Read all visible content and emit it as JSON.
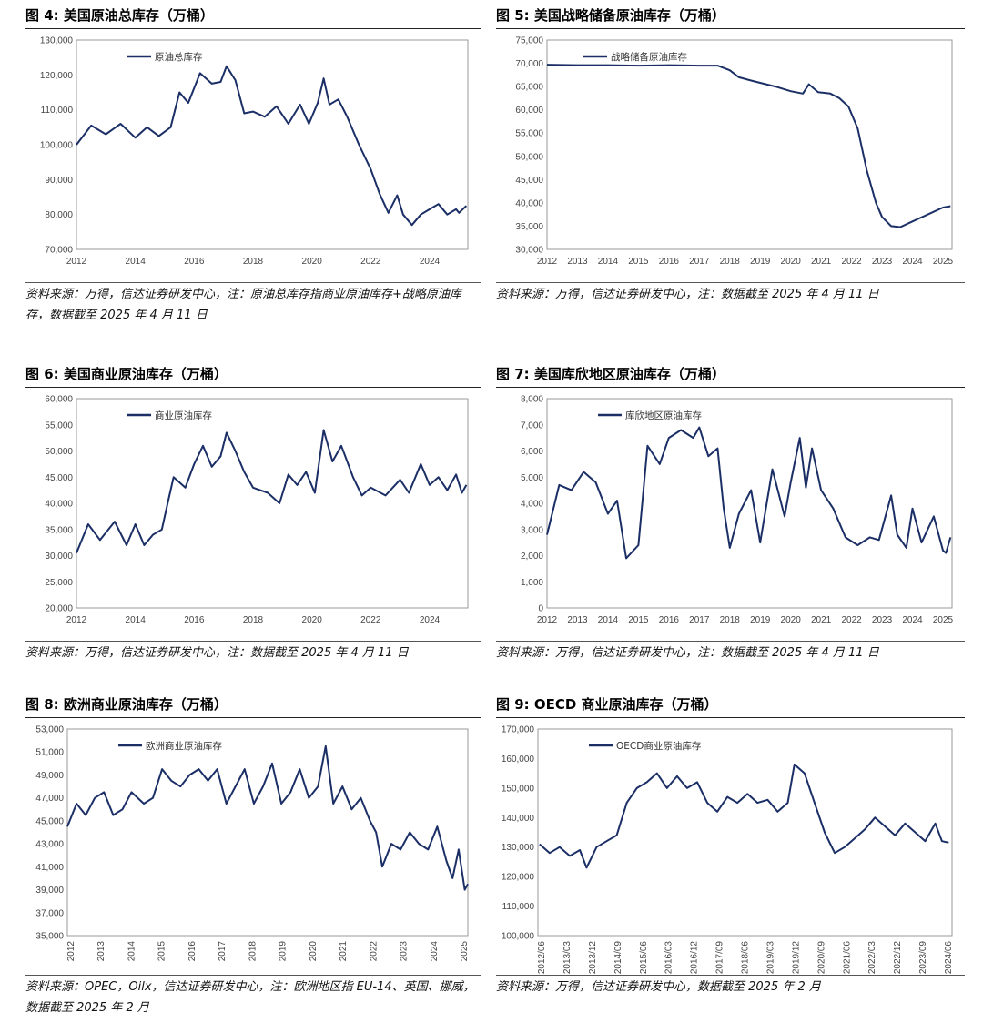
{
  "page": {
    "line_color": "#1b2f66",
    "panels": [
      {
        "title": "图 4:  美国原油总库存（万桶）",
        "source": "资料来源：万得，信达证券研发中心，注：原油总库存指商业原油库存+战略原油库存，数据截至 2025 年 4 月 11 日"
      },
      {
        "title": "图 5:  美国战略储备原油库存（万桶）",
        "source": "资料来源：万得，信达证券研发中心，注：数据截至 2025 年 4 月 11 日"
      },
      {
        "title": "图 6:  美国商业原油库存（万桶）",
        "source": "资料来源：万得，信达证券研发中心，注：数据截至 2025 年 4 月 11 日"
      },
      {
        "title": "图 7:  美国库欣地区原油库存（万桶）",
        "source": "资料来源：万得，信达证券研发中心，注：数据截至 2025 年 4 月 11 日"
      },
      {
        "title": "图 8:  欧洲商业原油库存（万桶）",
        "source": "资料来源：OPEC，Oilx，信达证券研发中心，注：欧洲地区指 EU-14、英国、挪威，数据截至 2025 年 2 月"
      },
      {
        "title": "图 9:  OECD 商业原油库存（万桶）",
        "source": "资料来源：万得，信达证券研发中心，数据截至 2025 年 2 月"
      }
    ]
  },
  "chart_data": [
    {
      "type": "line",
      "title": "图 4:  美国原油总库存（万桶）",
      "series": [
        {
          "name": "原油总库存",
          "x": [
            2012.0,
            2012.5,
            2013.0,
            2013.5,
            2014.0,
            2014.4,
            2014.8,
            2015.2,
            2015.5,
            2015.8,
            2016.2,
            2016.6,
            2016.9,
            2017.1,
            2017.4,
            2017.7,
            2018.0,
            2018.4,
            2018.8,
            2019.2,
            2019.6,
            2019.9,
            2020.2,
            2020.4,
            2020.6,
            2020.9,
            2021.2,
            2021.6,
            2022.0,
            2022.3,
            2022.6,
            2022.9,
            2023.1,
            2023.4,
            2023.7,
            2024.0,
            2024.3,
            2024.6,
            2024.9,
            2025.0,
            2025.25
          ],
          "values": [
            100000,
            105500,
            103000,
            106000,
            102000,
            105000,
            102500,
            105000,
            115000,
            112000,
            120500,
            117500,
            118000,
            122500,
            118500,
            109000,
            109500,
            108000,
            111000,
            106000,
            111500,
            106000,
            112000,
            119000,
            111500,
            113000,
            108000,
            100000,
            93000,
            86000,
            80500,
            85500,
            80000,
            77000,
            80000,
            81500,
            83000,
            80000,
            81500,
            80500,
            82500
          ]
        }
      ],
      "xlim": [
        2012,
        2025.3
      ],
      "ylim": [
        70000,
        130000
      ],
      "x_ticks": [
        "2012",
        "2014",
        "2016",
        "2018",
        "2020",
        "2022",
        "2024"
      ],
      "y_ticks": [
        "70,000",
        "80,000",
        "90,000",
        "100,000",
        "110,000",
        "120,000",
        "130,000"
      ]
    },
    {
      "type": "line",
      "title": "图 5:  美国战略储备原油库存（万桶）",
      "series": [
        {
          "name": "战略储备原油库存",
          "x": [
            2012.0,
            2013.0,
            2014.0,
            2015.0,
            2016.0,
            2017.0,
            2017.6,
            2018.0,
            2018.3,
            2018.7,
            2019.0,
            2019.5,
            2020.0,
            2020.4,
            2020.6,
            2020.9,
            2021.3,
            2021.6,
            2021.9,
            2022.2,
            2022.5,
            2022.8,
            2023.0,
            2023.3,
            2023.6,
            2024.0,
            2024.5,
            2025.0,
            2025.25
          ],
          "values": [
            69700,
            69600,
            69600,
            69500,
            69600,
            69500,
            69500,
            68500,
            67000,
            66300,
            65800,
            65000,
            64000,
            63500,
            65500,
            63800,
            63500,
            62500,
            60700,
            56000,
            47000,
            40000,
            37000,
            35000,
            34800,
            36000,
            37500,
            39000,
            39300
          ]
        }
      ],
      "xlim": [
        2012,
        2025.3
      ],
      "ylim": [
        30000,
        75000
      ],
      "x_ticks": [
        "2012",
        "2013",
        "2014",
        "2015",
        "2016",
        "2017",
        "2018",
        "2019",
        "2020",
        "2021",
        "2022",
        "2023",
        "2024",
        "2025"
      ],
      "y_ticks": [
        "30,000",
        "35,000",
        "40,000",
        "45,000",
        "50,000",
        "55,000",
        "60,000",
        "65,000",
        "70,000",
        "75,000"
      ]
    },
    {
      "type": "line",
      "title": "图 6:  美国商业原油库存（万桶）",
      "series": [
        {
          "name": "商业原油库存",
          "x": [
            2012.0,
            2012.4,
            2012.8,
            2013.3,
            2013.7,
            2014.0,
            2014.3,
            2014.6,
            2014.9,
            2015.1,
            2015.3,
            2015.7,
            2016.0,
            2016.3,
            2016.6,
            2016.9,
            2017.1,
            2017.4,
            2017.7,
            2018.0,
            2018.5,
            2018.9,
            2019.2,
            2019.5,
            2019.8,
            2020.1,
            2020.4,
            2020.7,
            2021.0,
            2021.4,
            2021.7,
            2022.0,
            2022.5,
            2023.0,
            2023.3,
            2023.7,
            2024.0,
            2024.3,
            2024.6,
            2024.9,
            2025.1,
            2025.25
          ],
          "values": [
            30500,
            36000,
            33000,
            36500,
            32000,
            36000,
            32000,
            34000,
            35000,
            40000,
            45000,
            43000,
            47500,
            51000,
            47000,
            49000,
            53500,
            50000,
            46000,
            43000,
            42000,
            40000,
            45500,
            43500,
            46000,
            42000,
            54000,
            48000,
            51000,
            45000,
            41500,
            43000,
            41500,
            44500,
            42000,
            47500,
            43500,
            45000,
            42500,
            45500,
            42000,
            43500
          ]
        }
      ],
      "xlim": [
        2012,
        2025.3
      ],
      "ylim": [
        20000,
        60000
      ],
      "x_ticks": [
        "2012",
        "2014",
        "2016",
        "2018",
        "2020",
        "2022",
        "2024"
      ],
      "y_ticks": [
        "20,000",
        "25,000",
        "30,000",
        "35,000",
        "40,000",
        "45,000",
        "50,000",
        "55,000",
        "60,000"
      ]
    },
    {
      "type": "line",
      "title": "图 7:  美国库欣地区原油库存（万桶）",
      "series": [
        {
          "name": "库欣地区原油库存",
          "x": [
            2012.0,
            2012.4,
            2012.8,
            2013.2,
            2013.6,
            2014.0,
            2014.3,
            2014.6,
            2015.0,
            2015.3,
            2015.7,
            2016.0,
            2016.4,
            2016.8,
            2017.0,
            2017.3,
            2017.6,
            2017.8,
            2018.0,
            2018.3,
            2018.7,
            2019.0,
            2019.4,
            2019.8,
            2020.0,
            2020.3,
            2020.5,
            2020.7,
            2021.0,
            2021.4,
            2021.8,
            2022.2,
            2022.6,
            2022.9,
            2023.3,
            2023.5,
            2023.8,
            2024.0,
            2024.3,
            2024.7,
            2025.0,
            2025.1,
            2025.25
          ],
          "values": [
            2800,
            4700,
            4500,
            5200,
            4800,
            3600,
            4100,
            1900,
            2400,
            6200,
            5500,
            6500,
            6800,
            6500,
            6900,
            5800,
            6100,
            3800,
            2300,
            3600,
            4500,
            2500,
            5300,
            3500,
            4800,
            6500,
            4600,
            6100,
            4500,
            3800,
            2700,
            2400,
            2700,
            2600,
            4300,
            2800,
            2300,
            3800,
            2500,
            3500,
            2200,
            2100,
            2700
          ]
        }
      ],
      "xlim": [
        2012,
        2025.3
      ],
      "ylim": [
        0,
        8000
      ],
      "x_ticks": [
        "2012",
        "2013",
        "2014",
        "2015",
        "2016",
        "2017",
        "2018",
        "2019",
        "2020",
        "2021",
        "2022",
        "2023",
        "2024",
        "2025"
      ],
      "y_ticks": [
        "0",
        "1,000",
        "2,000",
        "3,000",
        "4,000",
        "5,000",
        "6,000",
        "7,000",
        "8,000"
      ]
    },
    {
      "type": "line",
      "title": "图 8:  欧洲商业原油库存（万桶）",
      "series": [
        {
          "name": "欧洲商业原油库存",
          "x": [
            2012.0,
            2012.3,
            2012.6,
            2012.9,
            2013.2,
            2013.5,
            2013.8,
            2014.1,
            2014.5,
            2014.8,
            2015.1,
            2015.4,
            2015.7,
            2016.0,
            2016.3,
            2016.6,
            2016.9,
            2017.2,
            2017.5,
            2017.8,
            2018.1,
            2018.4,
            2018.7,
            2019.0,
            2019.3,
            2019.6,
            2019.9,
            2020.2,
            2020.45,
            2020.7,
            2021.0,
            2021.3,
            2021.6,
            2021.9,
            2022.1,
            2022.3,
            2022.6,
            2022.9,
            2023.2,
            2023.5,
            2023.8,
            2024.1,
            2024.4,
            2024.6,
            2024.8,
            2025.0,
            2025.1
          ],
          "values": [
            44500,
            46500,
            45500,
            47000,
            47500,
            45500,
            46000,
            47500,
            46500,
            47000,
            49500,
            48500,
            48000,
            49000,
            49500,
            48500,
            49500,
            46500,
            48000,
            49500,
            46500,
            48000,
            50000,
            46500,
            47500,
            49500,
            47000,
            48000,
            51500,
            46500,
            48000,
            46000,
            47000,
            45000,
            44000,
            41000,
            43000,
            42500,
            44000,
            43000,
            42500,
            44500,
            41500,
            40000,
            42500,
            39000,
            39500
          ]
        }
      ],
      "xlim": [
        2012,
        2025.1
      ],
      "ylim": [
        35000,
        53000
      ],
      "x_ticks": [
        "2012",
        "2013",
        "2014",
        "2015",
        "2016",
        "2017",
        "2018",
        "2019",
        "2020",
        "2021",
        "2022",
        "2023",
        "2024",
        "2025"
      ],
      "y_ticks": [
        "35,000",
        "37,000",
        "39,000",
        "41,000",
        "43,000",
        "45,000",
        "47,000",
        "49,000",
        "51,000",
        "53,000"
      ]
    },
    {
      "type": "line",
      "title": "图 9:  OECD 商业原油库存（万桶）",
      "series": [
        {
          "name": "OECD商业原油库存",
          "x": [
            2012.5,
            2012.8,
            2013.1,
            2013.4,
            2013.7,
            2013.9,
            2014.2,
            2014.5,
            2014.8,
            2015.1,
            2015.4,
            2015.7,
            2016.0,
            2016.3,
            2016.6,
            2016.9,
            2017.2,
            2017.5,
            2017.8,
            2018.1,
            2018.4,
            2018.7,
            2019.0,
            2019.3,
            2019.6,
            2019.9,
            2020.1,
            2020.4,
            2020.7,
            2021.0,
            2021.3,
            2021.6,
            2021.9,
            2022.2,
            2022.5,
            2022.8,
            2023.1,
            2023.4,
            2023.7,
            2024.0,
            2024.3,
            2024.5,
            2024.7
          ],
          "values": [
            131000,
            128000,
            130000,
            127000,
            129000,
            123000,
            130000,
            132000,
            134000,
            145000,
            150000,
            152000,
            155000,
            150000,
            154000,
            150000,
            152000,
            145000,
            142000,
            147000,
            145000,
            148000,
            145000,
            146000,
            142000,
            145000,
            158000,
            155000,
            145000,
            135000,
            128000,
            130000,
            133000,
            136000,
            140000,
            137000,
            134000,
            138000,
            135000,
            132000,
            138000,
            132000,
            131500
          ]
        }
      ],
      "xlim": [
        2012.45,
        2024.8
      ],
      "ylim": [
        100000,
        170000
      ],
      "x_ticks": [
        "2012/06",
        "2013/03",
        "2013/12",
        "2014/09",
        "2015/06",
        "2016/03",
        "2016/12",
        "2017/09",
        "2018/06",
        "2019/03",
        "2019/12",
        "2020/09",
        "2021/06",
        "2022/03",
        "2022/12",
        "2023/09",
        "2024/06"
      ],
      "y_ticks": [
        "100,000",
        "110,000",
        "120,000",
        "130,000",
        "140,000",
        "150,000",
        "160,000",
        "170,000"
      ]
    }
  ]
}
